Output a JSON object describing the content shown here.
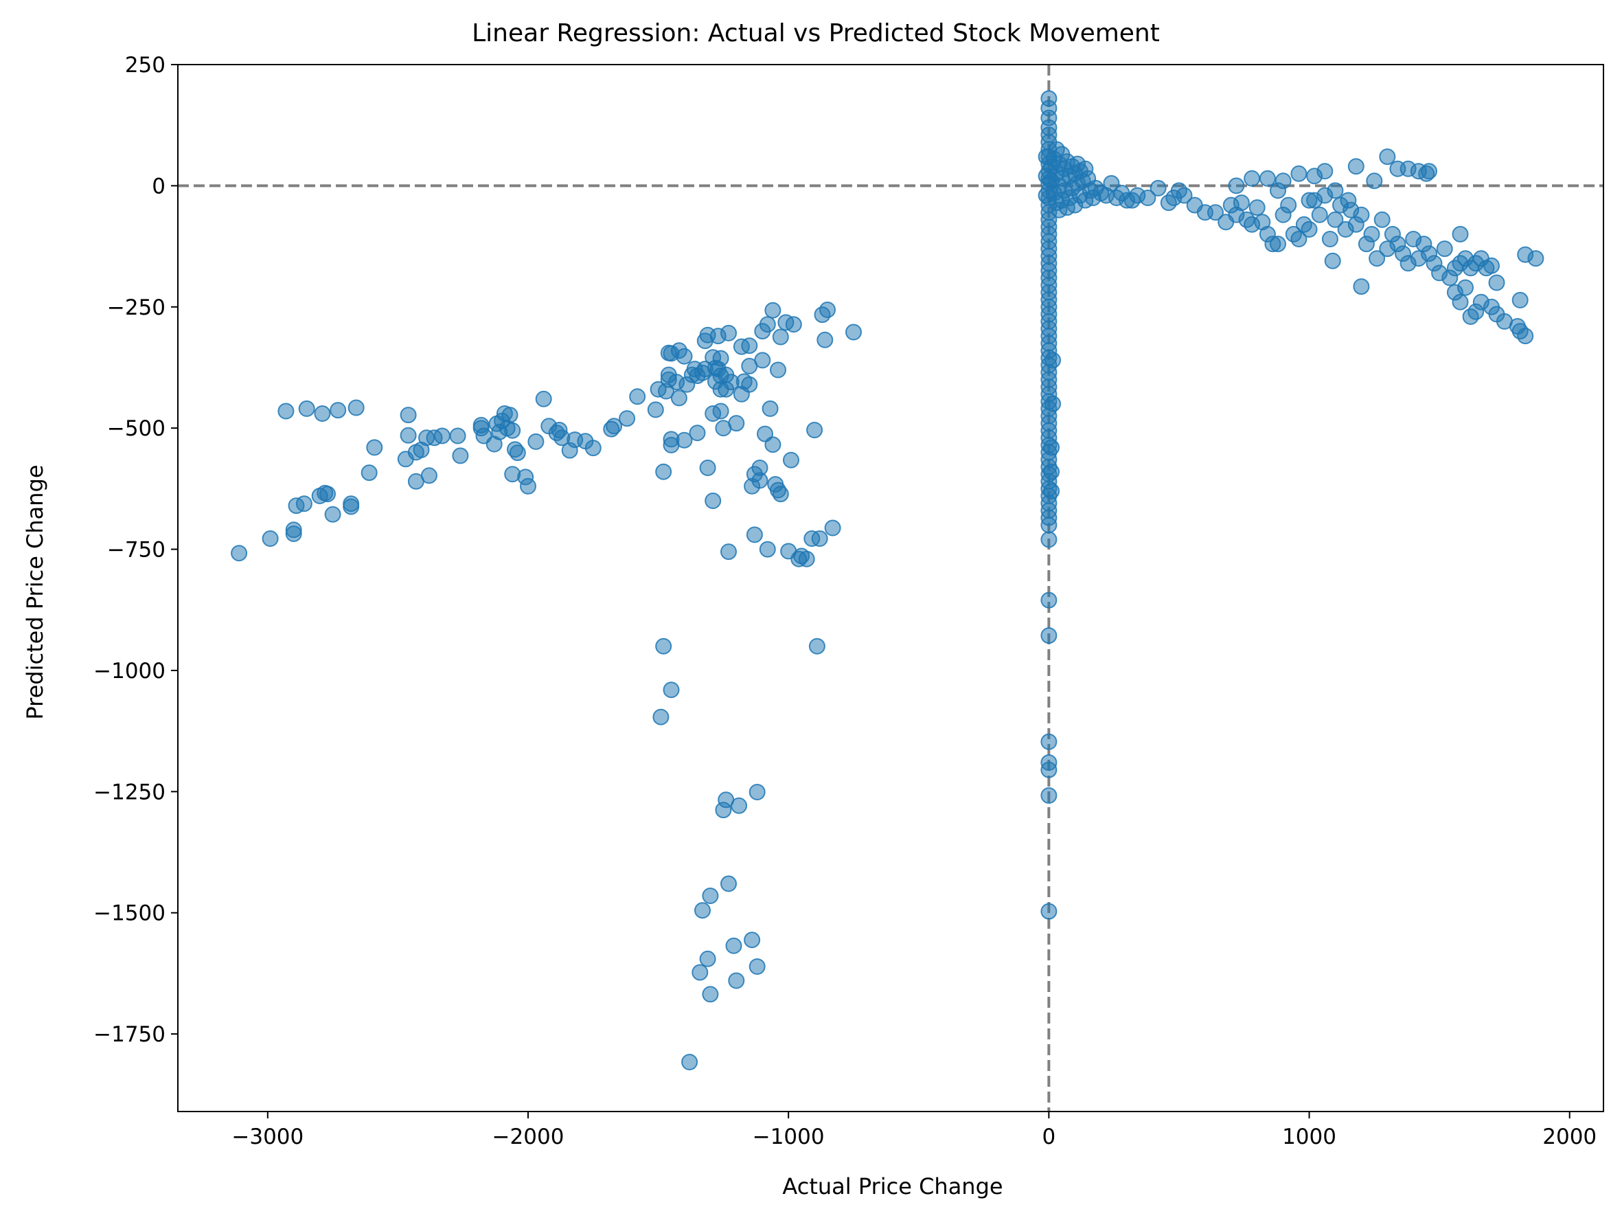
{
  "chart_data": {
    "type": "scatter",
    "title": "Linear Regression: Actual vs Predicted Stock Movement",
    "xlabel": "Actual Price Change",
    "ylabel": "Predicted Price Change",
    "xlim": [
      -3345,
      2130
    ],
    "ylim": [
      -1910,
      250
    ],
    "xticks": [
      -3000,
      -2000,
      -1000,
      0,
      1000,
      2000
    ],
    "yticks": [
      250,
      0,
      -250,
      -500,
      -750,
      -1000,
      -1250,
      -1500,
      -1750
    ],
    "xtick_labels": [
      "−3000",
      "−2000",
      "−1000",
      "0",
      "1000",
      "2000"
    ],
    "ytick_labels": [
      "250",
      "0",
      "−250",
      "−500",
      "−750",
      "−1000",
      "−1250",
      "−1500",
      "−1750"
    ],
    "reference_lines": {
      "horizontal_y": 0,
      "vertical_x": 0,
      "color": "#808080",
      "style": "dashed"
    },
    "marker_color": "#1f77b4",
    "marker_alpha": 0.5,
    "grid": false,
    "points": [
      [
        -3110,
        -758
      ],
      [
        -2990,
        -728
      ],
      [
        -2900,
        -718
      ],
      [
        -2900,
        -710
      ],
      [
        -2890,
        -660
      ],
      [
        -2860,
        -656
      ],
      [
        -2800,
        -640
      ],
      [
        -2770,
        -636
      ],
      [
        -2780,
        -634
      ],
      [
        -2750,
        -678
      ],
      [
        -2680,
        -662
      ],
      [
        -2680,
        -656
      ],
      [
        -2930,
        -465
      ],
      [
        -2850,
        -460
      ],
      [
        -2790,
        -470
      ],
      [
        -2730,
        -463
      ],
      [
        -2660,
        -458
      ],
      [
        -2610,
        -592
      ],
      [
        -2590,
        -540
      ],
      [
        -2470,
        -564
      ],
      [
        -2460,
        -515
      ],
      [
        -2460,
        -473
      ],
      [
        -2430,
        -610
      ],
      [
        -2430,
        -550
      ],
      [
        -2410,
        -545
      ],
      [
        -2390,
        -520
      ],
      [
        -2380,
        -598
      ],
      [
        -2360,
        -520
      ],
      [
        -2330,
        -516
      ],
      [
        -2270,
        -516
      ],
      [
        -2260,
        -557
      ],
      [
        -2180,
        -500
      ],
      [
        -2180,
        -494
      ],
      [
        -2170,
        -516
      ],
      [
        -2130,
        -533
      ],
      [
        -2120,
        -491
      ],
      [
        -2110,
        -508
      ],
      [
        -2100,
        -485
      ],
      [
        -2090,
        -470
      ],
      [
        -2080,
        -500
      ],
      [
        -2070,
        -473
      ],
      [
        -2060,
        -505
      ],
      [
        -2060,
        -595
      ],
      [
        -2050,
        -544
      ],
      [
        -2040,
        -551
      ],
      [
        -2010,
        -601
      ],
      [
        -2000,
        -620
      ],
      [
        -1970,
        -528
      ],
      [
        -1940,
        -440
      ],
      [
        -1920,
        -496
      ],
      [
        -1890,
        -510
      ],
      [
        -1880,
        -504
      ],
      [
        -1870,
        -520
      ],
      [
        -1840,
        -546
      ],
      [
        -1820,
        -524
      ],
      [
        -1780,
        -527
      ],
      [
        -1750,
        -541
      ],
      [
        -1680,
        -502
      ],
      [
        -1670,
        -496
      ],
      [
        -1620,
        -480
      ],
      [
        -1580,
        -435
      ],
      [
        -1510,
        -462
      ],
      [
        -1500,
        -420
      ],
      [
        -1480,
        -590
      ],
      [
        -1480,
        -950
      ],
      [
        -1490,
        -1096
      ],
      [
        -1450,
        -1040
      ],
      [
        -1470,
        -424
      ],
      [
        -1460,
        -400
      ],
      [
        -1460,
        -390
      ],
      [
        -1460,
        -345
      ],
      [
        -1450,
        -346
      ],
      [
        -1450,
        -535
      ],
      [
        -1450,
        -523
      ],
      [
        -1430,
        -405
      ],
      [
        -1420,
        -340
      ],
      [
        -1420,
        -438
      ],
      [
        -1400,
        -352
      ],
      [
        -1400,
        -525
      ],
      [
        -1390,
        -410
      ],
      [
        -1380,
        -1808
      ],
      [
        -1370,
        -390
      ],
      [
        -1360,
        -378
      ],
      [
        -1350,
        -392
      ],
      [
        -1350,
        -510
      ],
      [
        -1340,
        -1623
      ],
      [
        -1330,
        -1495
      ],
      [
        -1330,
        -386
      ],
      [
        -1320,
        -320
      ],
      [
        -1320,
        -378
      ],
      [
        -1310,
        -308
      ],
      [
        -1310,
        -582
      ],
      [
        -1310,
        -1595
      ],
      [
        -1300,
        -1465
      ],
      [
        -1300,
        -1668
      ],
      [
        -1290,
        -650
      ],
      [
        -1290,
        -470
      ],
      [
        -1290,
        -354
      ],
      [
        -1280,
        -404
      ],
      [
        -1280,
        -376
      ],
      [
        -1270,
        -310
      ],
      [
        -1270,
        -378
      ],
      [
        -1260,
        -356
      ],
      [
        -1260,
        -392
      ],
      [
        -1260,
        -420
      ],
      [
        -1260,
        -465
      ],
      [
        -1250,
        -500
      ],
      [
        -1250,
        -1288
      ],
      [
        -1240,
        -1267
      ],
      [
        -1240,
        -420
      ],
      [
        -1240,
        -390
      ],
      [
        -1230,
        -1440
      ],
      [
        -1230,
        -755
      ],
      [
        -1230,
        -304
      ],
      [
        -1220,
        -405
      ],
      [
        -1210,
        -1568
      ],
      [
        -1200,
        -1640
      ],
      [
        -1200,
        -490
      ],
      [
        -1190,
        -1279
      ],
      [
        -1180,
        -430
      ],
      [
        -1180,
        -332
      ],
      [
        -1170,
        -404
      ],
      [
        -1150,
        -410
      ],
      [
        -1150,
        -372
      ],
      [
        -1150,
        -330
      ],
      [
        -1140,
        -620
      ],
      [
        -1140,
        -1556
      ],
      [
        -1130,
        -595
      ],
      [
        -1130,
        -720
      ],
      [
        -1120,
        -1251
      ],
      [
        -1120,
        -1611
      ],
      [
        -1110,
        -582
      ],
      [
        -1110,
        -608
      ],
      [
        -1100,
        -300
      ],
      [
        -1100,
        -360
      ],
      [
        -1090,
        -512
      ],
      [
        -1080,
        -750
      ],
      [
        -1080,
        -286
      ],
      [
        -1070,
        -460
      ],
      [
        -1060,
        -534
      ],
      [
        -1060,
        -257
      ],
      [
        -1050,
        -616
      ],
      [
        -1040,
        -628
      ],
      [
        -1040,
        -380
      ],
      [
        -1030,
        -312
      ],
      [
        -1030,
        -636
      ],
      [
        -1010,
        -282
      ],
      [
        -1000,
        -754
      ],
      [
        -990,
        -566
      ],
      [
        -980,
        -286
      ],
      [
        -960,
        -770
      ],
      [
        -950,
        -764
      ],
      [
        -930,
        -770
      ],
      [
        -910,
        -728
      ],
      [
        -900,
        -504
      ],
      [
        -890,
        -950
      ],
      [
        -880,
        -728
      ],
      [
        -870,
        -266
      ],
      [
        -860,
        -318
      ],
      [
        -850,
        -256
      ],
      [
        -830,
        -706
      ],
      [
        -750,
        -302
      ],
      [
        0,
        180
      ],
      [
        0,
        160
      ],
      [
        0,
        140
      ],
      [
        0,
        120
      ],
      [
        0,
        105
      ],
      [
        0,
        90
      ],
      [
        0,
        75
      ],
      [
        0,
        60
      ],
      [
        0,
        45
      ],
      [
        0,
        30
      ],
      [
        0,
        15
      ],
      [
        0,
        5
      ],
      [
        0,
        -10
      ],
      [
        0,
        -25
      ],
      [
        0,
        -40
      ],
      [
        0,
        -55
      ],
      [
        0,
        -70
      ],
      [
        0,
        -85
      ],
      [
        0,
        -100
      ],
      [
        0,
        -115
      ],
      [
        0,
        -130
      ],
      [
        0,
        -145
      ],
      [
        0,
        -160
      ],
      [
        0,
        -175
      ],
      [
        0,
        -190
      ],
      [
        0,
        -205
      ],
      [
        0,
        -220
      ],
      [
        0,
        -235
      ],
      [
        0,
        -250
      ],
      [
        0,
        -265
      ],
      [
        0,
        -280
      ],
      [
        0,
        -295
      ],
      [
        0,
        -310
      ],
      [
        0,
        -325
      ],
      [
        0,
        -340
      ],
      [
        0,
        -355
      ],
      [
        0,
        -370
      ],
      [
        0,
        -385
      ],
      [
        0,
        -400
      ],
      [
        0,
        -415
      ],
      [
        0,
        -430
      ],
      [
        0,
        -445
      ],
      [
        0,
        -460
      ],
      [
        0,
        -475
      ],
      [
        0,
        -490
      ],
      [
        0,
        -505
      ],
      [
        0,
        -520
      ],
      [
        0,
        -535
      ],
      [
        0,
        -550
      ],
      [
        0,
        -565
      ],
      [
        0,
        -580
      ],
      [
        0,
        -595
      ],
      [
        0,
        -610
      ],
      [
        0,
        -625
      ],
      [
        0,
        -640
      ],
      [
        0,
        -655
      ],
      [
        0,
        -670
      ],
      [
        0,
        -685
      ],
      [
        0,
        -700
      ],
      [
        0,
        -730
      ],
      [
        0,
        -855
      ],
      [
        0,
        -928
      ],
      [
        0,
        -1147
      ],
      [
        0,
        -1190
      ],
      [
        0,
        -1205
      ],
      [
        0,
        -1258
      ],
      [
        0,
        -1497
      ],
      [
        10,
        -540
      ],
      [
        10,
        -590
      ],
      [
        10,
        -630
      ],
      [
        15,
        -450
      ],
      [
        15,
        -360
      ],
      [
        -10,
        60
      ],
      [
        -10,
        20
      ],
      [
        -10,
        -20
      ],
      [
        10,
        40
      ],
      [
        10,
        10
      ],
      [
        20,
        55
      ],
      [
        20,
        -15
      ],
      [
        30,
        75
      ],
      [
        30,
        25
      ],
      [
        30,
        -35
      ],
      [
        40,
        45
      ],
      [
        40,
        0
      ],
      [
        40,
        -50
      ],
      [
        50,
        65
      ],
      [
        50,
        15
      ],
      [
        50,
        -30
      ],
      [
        60,
        35
      ],
      [
        60,
        -10
      ],
      [
        70,
        50
      ],
      [
        70,
        -45
      ],
      [
        80,
        20
      ],
      [
        80,
        -25
      ],
      [
        90,
        40
      ],
      [
        90,
        -5
      ],
      [
        100,
        25
      ],
      [
        100,
        -40
      ],
      [
        110,
        45
      ],
      [
        110,
        5
      ],
      [
        120,
        30
      ],
      [
        120,
        -20
      ],
      [
        130,
        10
      ],
      [
        140,
        35
      ],
      [
        140,
        -30
      ],
      [
        150,
        15
      ],
      [
        160,
        -10
      ],
      [
        170,
        -25
      ],
      [
        180,
        -5
      ],
      [
        200,
        -15
      ],
      [
        220,
        -20
      ],
      [
        240,
        5
      ],
      [
        260,
        -25
      ],
      [
        280,
        -15
      ],
      [
        300,
        -30
      ],
      [
        320,
        -30
      ],
      [
        340,
        -20
      ],
      [
        380,
        -25
      ],
      [
        420,
        -5
      ],
      [
        460,
        -35
      ],
      [
        480,
        -25
      ],
      [
        500,
        -10
      ],
      [
        520,
        -20
      ],
      [
        560,
        -40
      ],
      [
        600,
        -55
      ],
      [
        640,
        -55
      ],
      [
        680,
        -75
      ],
      [
        700,
        -40
      ],
      [
        720,
        -60
      ],
      [
        740,
        -35
      ],
      [
        760,
        -70
      ],
      [
        780,
        -80
      ],
      [
        800,
        -45
      ],
      [
        820,
        -75
      ],
      [
        840,
        -100
      ],
      [
        860,
        -120
      ],
      [
        880,
        -120
      ],
      [
        900,
        -60
      ],
      [
        920,
        -40
      ],
      [
        940,
        -100
      ],
      [
        960,
        -110
      ],
      [
        980,
        -80
      ],
      [
        1000,
        -90
      ],
      [
        1020,
        -30
      ],
      [
        1040,
        -60
      ],
      [
        1060,
        -20
      ],
      [
        1080,
        -110
      ],
      [
        1100,
        -70
      ],
      [
        1120,
        -40
      ],
      [
        1140,
        -90
      ],
      [
        1160,
        -50
      ],
      [
        1180,
        -80
      ],
      [
        1200,
        -60
      ],
      [
        1220,
        -120
      ],
      [
        1240,
        -100
      ],
      [
        1260,
        -150
      ],
      [
        1280,
        -70
      ],
      [
        1300,
        -130
      ],
      [
        1320,
        -100
      ],
      [
        1340,
        -120
      ],
      [
        1360,
        -140
      ],
      [
        1380,
        -160
      ],
      [
        1400,
        -110
      ],
      [
        1420,
        -150
      ],
      [
        1440,
        -120
      ],
      [
        1460,
        -140
      ],
      [
        1480,
        -160
      ],
      [
        1500,
        -180
      ],
      [
        1520,
        -130
      ],
      [
        1540,
        -190
      ],
      [
        1560,
        -170
      ],
      [
        1580,
        -160
      ],
      [
        1600,
        -150
      ],
      [
        1620,
        -170
      ],
      [
        1640,
        -160
      ],
      [
        1660,
        -150
      ],
      [
        1680,
        -170
      ],
      [
        1700,
        -165
      ],
      [
        1720,
        -200
      ],
      [
        1580,
        -100
      ],
      [
        1560,
        -220
      ],
      [
        1580,
        -240
      ],
      [
        1600,
        -210
      ],
      [
        1620,
        -270
      ],
      [
        1640,
        -260
      ],
      [
        1660,
        -240
      ],
      [
        1700,
        -250
      ],
      [
        1720,
        -265
      ],
      [
        1750,
        -280
      ],
      [
        1800,
        -290
      ],
      [
        1810,
        -300
      ],
      [
        1830,
        -310
      ],
      [
        1810,
        -236
      ],
      [
        1830,
        -142
      ],
      [
        1870,
        -150
      ],
      [
        1200,
        -208
      ],
      [
        1090,
        -155
      ],
      [
        1300,
        60
      ],
      [
        1340,
        35
      ],
      [
        1380,
        35
      ],
      [
        1420,
        30
      ],
      [
        1450,
        25
      ],
      [
        1460,
        30
      ],
      [
        1180,
        40
      ],
      [
        1060,
        30
      ],
      [
        1020,
        20
      ],
      [
        960,
        25
      ],
      [
        900,
        10
      ],
      [
        840,
        15
      ],
      [
        780,
        15
      ],
      [
        720,
        0
      ],
      [
        880,
        -10
      ],
      [
        1000,
        -30
      ],
      [
        1100,
        -10
      ],
      [
        1150,
        -30
      ],
      [
        1250,
        10
      ]
    ]
  }
}
